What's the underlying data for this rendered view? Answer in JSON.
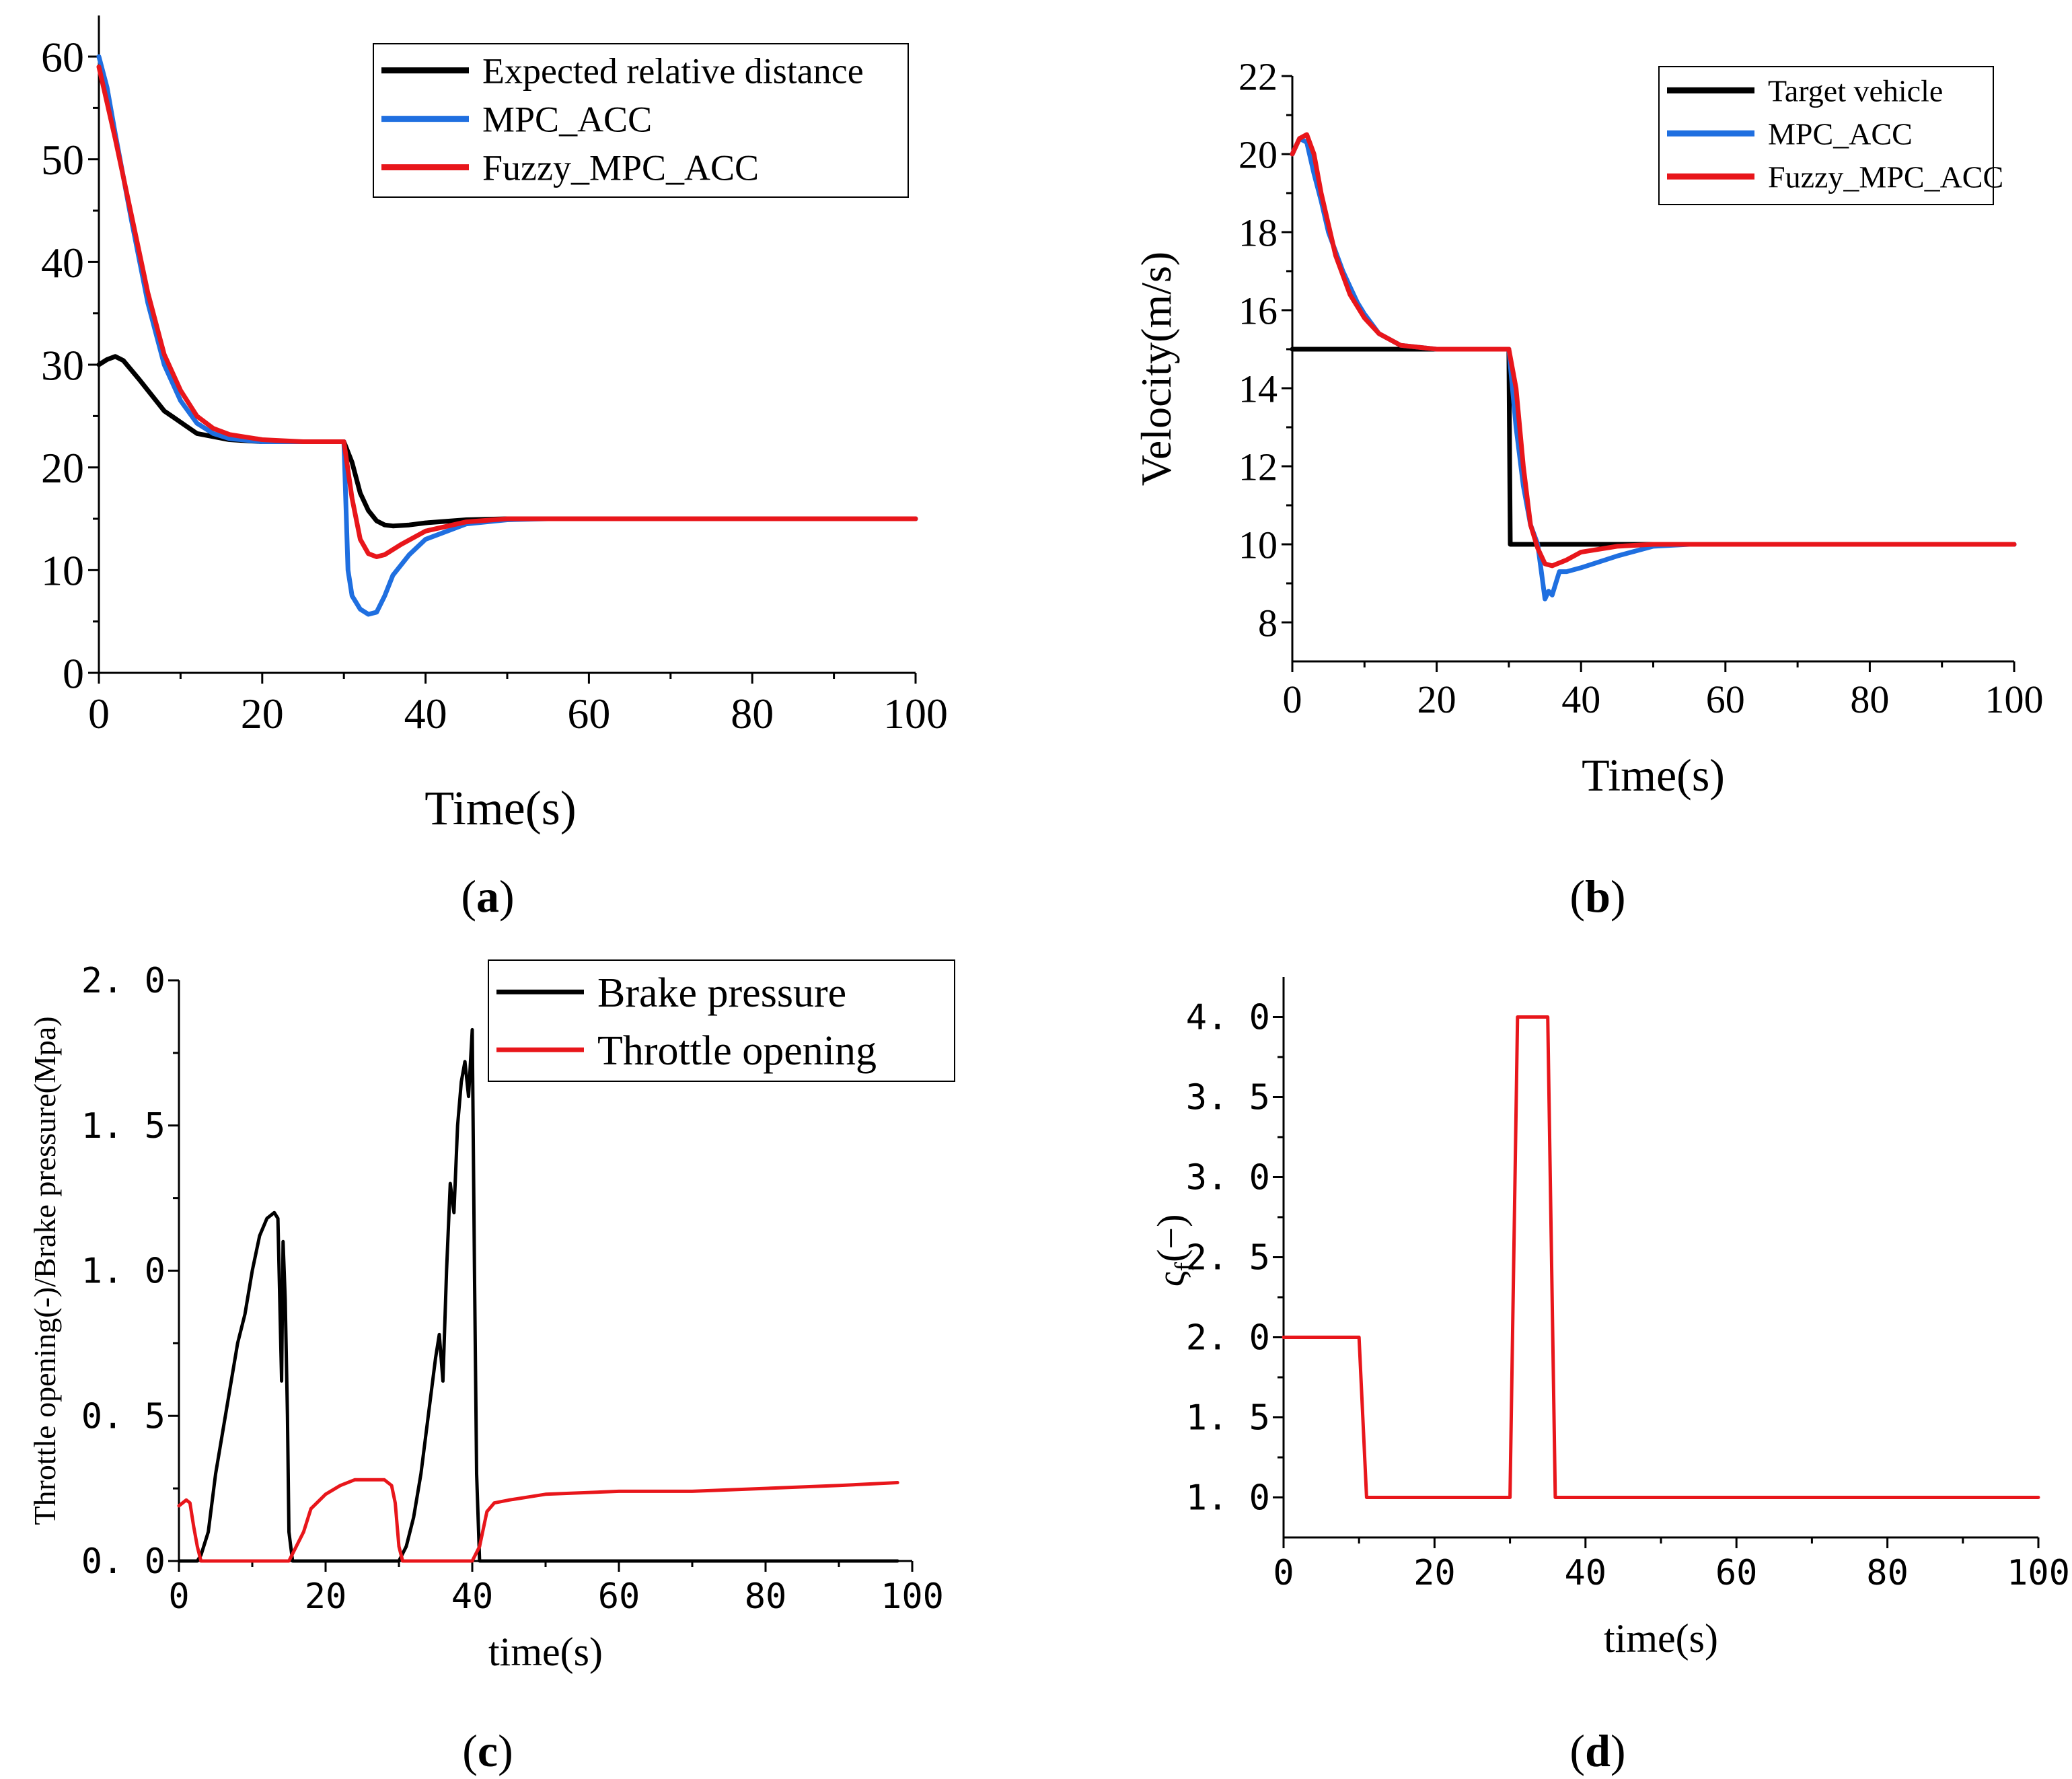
{
  "chart_data": [
    {
      "panel": "a",
      "type": "line",
      "caption": "a",
      "xlabel": "Time(s)",
      "ylabel": "",
      "xlim": [
        0,
        100
      ],
      "ylim": [
        0,
        64
      ],
      "xticks": [
        "0",
        "20",
        "40",
        "60",
        "80",
        "100"
      ],
      "yticks": [
        "0",
        "10",
        "20",
        "30",
        "40",
        "50",
        "60"
      ],
      "legend_position": "top-right",
      "series": [
        {
          "name": "Expected relative distance",
          "color": "#000000",
          "x": [
            0,
            1,
            2,
            3,
            5,
            8,
            12,
            16,
            20,
            25,
            30,
            31,
            32,
            33,
            34,
            35,
            36,
            38,
            40,
            45,
            50,
            60,
            80,
            100
          ],
          "y": [
            30.0,
            30.5,
            30.8,
            30.4,
            28.5,
            25.5,
            23.3,
            22.7,
            22.5,
            22.5,
            22.5,
            20.5,
            17.5,
            15.8,
            14.8,
            14.4,
            14.3,
            14.4,
            14.6,
            14.9,
            15.0,
            15.0,
            15.0,
            15.0
          ]
        },
        {
          "name": "MPC_ACC",
          "color": "#1f6fe0",
          "x": [
            0,
            1,
            2,
            4,
            6,
            8,
            10,
            12,
            14,
            16,
            20,
            25,
            30,
            30.5,
            31,
            32,
            33,
            34,
            35,
            36,
            38,
            40,
            45,
            50,
            55,
            60,
            80,
            100
          ],
          "y": [
            60.0,
            57.0,
            52.5,
            44.0,
            36.0,
            30.0,
            26.5,
            24.3,
            23.3,
            22.8,
            22.5,
            22.5,
            22.5,
            10.0,
            7.5,
            6.2,
            5.7,
            5.9,
            7.5,
            9.5,
            11.5,
            13.0,
            14.5,
            14.9,
            15.0,
            15.0,
            15.0,
            15.0
          ]
        },
        {
          "name": "Fuzzy_MPC_ACC",
          "color": "#e8161b",
          "x": [
            0,
            2,
            4,
            6,
            8,
            10,
            12,
            14,
            16,
            20,
            25,
            30,
            31,
            32,
            33,
            34,
            35,
            37,
            40,
            45,
            50,
            55,
            60,
            80,
            100
          ],
          "y": [
            59.0,
            52.0,
            44.5,
            37.0,
            31.0,
            27.5,
            25.0,
            23.8,
            23.2,
            22.7,
            22.5,
            22.5,
            17.0,
            13.0,
            11.6,
            11.3,
            11.5,
            12.5,
            13.8,
            14.7,
            15.0,
            15.0,
            15.0,
            15.0,
            15.0
          ]
        }
      ]
    },
    {
      "panel": "b",
      "type": "line",
      "caption": "b",
      "xlabel": "Time(s)",
      "ylabel": "Velocity(m/s)",
      "xlim": [
        0,
        100
      ],
      "ylim": [
        7,
        22
      ],
      "xticks": [
        "0",
        "20",
        "40",
        "60",
        "80",
        "100"
      ],
      "yticks": [
        "8",
        "10",
        "12",
        "14",
        "16",
        "18",
        "20",
        "22"
      ],
      "legend_position": "top-right",
      "series": [
        {
          "name": "Target vehicle",
          "color": "#000000",
          "x": [
            0,
            30,
            30.2,
            100
          ],
          "y": [
            15.0,
            15.0,
            10.0,
            10.0
          ]
        },
        {
          "name": "MPC_ACC",
          "color": "#1f6fe0",
          "x": [
            0,
            1,
            2,
            3,
            4,
            5,
            6,
            7,
            8,
            9,
            10,
            12,
            15,
            20,
            25,
            30,
            31,
            32,
            33,
            34,
            35,
            35.5,
            36,
            36.5,
            37,
            38,
            40,
            45,
            50,
            55,
            60,
            100
          ],
          "y": [
            20.0,
            20.4,
            20.3,
            19.5,
            18.8,
            18.0,
            17.5,
            17.0,
            16.6,
            16.2,
            15.9,
            15.4,
            15.1,
            15.0,
            15.0,
            15.0,
            13.0,
            11.5,
            10.5,
            10.0,
            8.6,
            8.8,
            8.7,
            9.0,
            9.3,
            9.3,
            9.4,
            9.7,
            9.95,
            10.0,
            10.0,
            10.0
          ]
        },
        {
          "name": "Fuzzy_MPC_ACC",
          "color": "#e8161b",
          "x": [
            0,
            1,
            2,
            3,
            4,
            6,
            8,
            10,
            12,
            15,
            20,
            25,
            30,
            31,
            32,
            33,
            34,
            35,
            36,
            38,
            40,
            45,
            50,
            60,
            100
          ],
          "y": [
            20.0,
            20.4,
            20.5,
            20.0,
            19.0,
            17.4,
            16.4,
            15.8,
            15.4,
            15.1,
            15.0,
            15.0,
            15.0,
            14.0,
            12.0,
            10.5,
            9.9,
            9.5,
            9.45,
            9.6,
            9.8,
            9.95,
            10.0,
            10.0,
            10.0
          ]
        }
      ]
    },
    {
      "panel": "c",
      "type": "line",
      "caption": "c",
      "xlabel": "time(s)",
      "ylabel": "Throttle opening(-)/Brake pressure(Mpa)",
      "xlim": [
        0,
        100
      ],
      "ylim": [
        0,
        2.0
      ],
      "xticks": [
        "0",
        "20",
        "40",
        "60",
        "80",
        "100"
      ],
      "yticks": [
        "0. 0",
        "0. 5",
        "1. 0",
        "1. 5",
        "2. 0"
      ],
      "legend_position": "top-right",
      "series": [
        {
          "name": "Brake pressure",
          "color": "#000000",
          "x": [
            0,
            2.5,
            3,
            4,
            5,
            6,
            7,
            8,
            9,
            10,
            11,
            12,
            13,
            13.5,
            14,
            14.2,
            14.5,
            14.8,
            15,
            15.5,
            16,
            20,
            25,
            30,
            31,
            32,
            33,
            34,
            35,
            35.5,
            36,
            36.5,
            37,
            37.5,
            38,
            38.5,
            39,
            39.5,
            40,
            40.3,
            40.6,
            41,
            45,
            60,
            80,
            98
          ],
          "y": [
            0,
            0,
            0.02,
            0.1,
            0.3,
            0.45,
            0.6,
            0.75,
            0.85,
            1.0,
            1.12,
            1.18,
            1.2,
            1.18,
            0.62,
            1.1,
            0.9,
            0.5,
            0.1,
            0,
            0,
            0,
            0,
            0,
            0.05,
            0.15,
            0.3,
            0.5,
            0.7,
            0.78,
            0.62,
            1.0,
            1.3,
            1.2,
            1.5,
            1.65,
            1.72,
            1.6,
            1.83,
            1.0,
            0.3,
            0,
            0,
            0,
            0,
            0
          ]
        },
        {
          "name": "Throttle opening",
          "color": "#e8161b",
          "x": [
            0,
            1,
            1.5,
            2,
            2.5,
            3,
            3.5,
            15,
            17,
            18,
            20,
            22,
            24,
            26,
            28,
            29,
            29.5,
            30,
            30.5,
            40,
            41,
            42,
            43,
            45,
            50,
            60,
            70,
            80,
            90,
            98
          ],
          "y": [
            0.19,
            0.21,
            0.2,
            0.12,
            0.05,
            0,
            0,
            0,
            0.1,
            0.18,
            0.23,
            0.26,
            0.28,
            0.28,
            0.28,
            0.26,
            0.2,
            0.05,
            0,
            0,
            0.05,
            0.17,
            0.2,
            0.21,
            0.23,
            0.24,
            0.24,
            0.25,
            0.26,
            0.27
          ]
        }
      ]
    },
    {
      "panel": "d",
      "type": "line",
      "caption": "d",
      "xlabel": "time(s)",
      "ylabel": "ς_f(−)",
      "ylabel_main": "ς",
      "ylabel_sub": "f",
      "ylabel_unit": "(−)",
      "xlim": [
        0,
        100
      ],
      "ylim": [
        0.75,
        4.25
      ],
      "xticks": [
        "0",
        "20",
        "40",
        "60",
        "80",
        "100"
      ],
      "yticks": [
        "1. 0",
        "1. 5",
        "2. 0",
        "2. 5",
        "3. 0",
        "3. 5",
        "4. 0"
      ],
      "series": [
        {
          "name": "ς_f",
          "color": "#e8161b",
          "x": [
            0,
            10,
            11,
            30,
            31,
            35,
            36,
            100
          ],
          "y": [
            2.0,
            2.0,
            1.0,
            1.0,
            4.0,
            4.0,
            1.0,
            1.0
          ]
        }
      ]
    }
  ]
}
